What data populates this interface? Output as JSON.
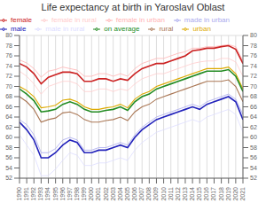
{
  "chart_data": {
    "type": "line",
    "title": "Life expectancy at birth in Yaroslavl Oblast",
    "x": [
      1990,
      1991,
      1992,
      1993,
      1994,
      1995,
      1996,
      1997,
      1998,
      1999,
      2000,
      2001,
      2002,
      2003,
      2004,
      2005,
      2006,
      2007,
      2008,
      2009,
      2010,
      2011,
      2012,
      2013,
      2014,
      2015,
      2016,
      2017,
      2018,
      2019,
      2020,
      2021
    ],
    "series": [
      {
        "name": "female in urban",
        "color": "#ffb3b3",
        "values": [
          75.2,
          74.6,
          73.5,
          71.8,
          73.0,
          73.3,
          73.8,
          73.5,
          73.2,
          72.0,
          72.0,
          72.5,
          72.5,
          72.0,
          72.5,
          72.0,
          73.5,
          74.5,
          75.0,
          75.5,
          75.5,
          76.0,
          76.5,
          76.8,
          77.5,
          77.5,
          77.8,
          77.8,
          78.0,
          78.2,
          77.8,
          75.0
        ]
      },
      {
        "name": "female",
        "color": "#cc2222",
        "values": [
          74.5,
          73.8,
          72.5,
          70.5,
          71.8,
          72.3,
          72.8,
          72.8,
          72.5,
          71.0,
          71.0,
          71.5,
          71.5,
          71.0,
          71.5,
          71.2,
          72.5,
          73.5,
          74.0,
          74.5,
          74.5,
          75.0,
          75.5,
          76.0,
          77.0,
          77.2,
          77.5,
          77.5,
          77.8,
          78.0,
          77.3,
          74.5
        ]
      },
      {
        "name": "female in rural",
        "color": "#ffcccc",
        "values": [
          73.0,
          72.0,
          70.5,
          68.5,
          70.0,
          70.5,
          71.0,
          71.0,
          70.5,
          69.0,
          69.0,
          69.5,
          69.5,
          69.0,
          69.5,
          69.2,
          70.5,
          71.5,
          72.0,
          72.5,
          72.5,
          73.0,
          73.5,
          74.0,
          74.5,
          74.8,
          75.0,
          75.0,
          75.5,
          75.5,
          74.8,
          72.0
        ]
      },
      {
        "name": "urban",
        "color": "#ddaa00",
        "values": [
          70.0,
          69.2,
          68.0,
          65.8,
          66.0,
          66.3,
          67.3,
          67.5,
          67.0,
          66.0,
          65.5,
          65.5,
          65.8,
          66.0,
          66.5,
          65.8,
          67.5,
          68.5,
          69.0,
          70.0,
          70.5,
          71.0,
          71.5,
          72.0,
          72.5,
          73.0,
          73.5,
          73.5,
          73.5,
          73.8,
          72.5,
          69.5
        ]
      },
      {
        "name": "on average",
        "color": "#228B22",
        "values": [
          69.5,
          68.5,
          67.2,
          65.0,
          65.2,
          65.5,
          66.5,
          67.0,
          66.5,
          65.5,
          65.0,
          65.0,
          65.3,
          65.5,
          66.0,
          65.3,
          67.0,
          68.0,
          68.5,
          69.5,
          70.0,
          70.5,
          71.0,
          71.5,
          72.0,
          72.5,
          73.0,
          73.0,
          73.0,
          73.3,
          72.0,
          69.0
        ]
      },
      {
        "name": "rural",
        "color": "#aa7755",
        "values": [
          68.0,
          67.0,
          65.5,
          63.0,
          63.5,
          63.8,
          64.8,
          65.0,
          64.5,
          63.5,
          63.0,
          63.0,
          63.3,
          63.5,
          64.0,
          63.3,
          65.0,
          66.0,
          66.5,
          67.5,
          68.0,
          68.5,
          69.0,
          69.5,
          70.0,
          70.5,
          71.0,
          71.0,
          71.0,
          71.3,
          70.0,
          67.0
        ]
      },
      {
        "name": "made in urban",
        "color": "#aaaaee",
        "values": [
          63.5,
          62.5,
          60.5,
          57.0,
          57.0,
          57.8,
          59.5,
          60.0,
          59.5,
          57.5,
          57.5,
          58.0,
          58.0,
          58.5,
          59.0,
          58.5,
          60.5,
          62.0,
          63.0,
          64.0,
          64.5,
          65.0,
          65.5,
          66.0,
          66.5,
          66.0,
          67.0,
          67.5,
          68.0,
          68.5,
          67.5,
          64.5
        ]
      },
      {
        "name": "male",
        "color": "#2222bb",
        "values": [
          63.0,
          61.5,
          59.5,
          56.0,
          56.0,
          57.0,
          58.5,
          59.5,
          59.0,
          57.0,
          57.0,
          57.5,
          57.5,
          58.0,
          58.5,
          58.0,
          60.0,
          61.5,
          62.5,
          63.5,
          64.0,
          64.5,
          65.0,
          65.5,
          66.0,
          65.5,
          66.5,
          67.0,
          67.5,
          68.0,
          67.0,
          63.5
        ]
      },
      {
        "name": "male in rural",
        "color": "#ddddff",
        "values": [
          60.5,
          58.5,
          56.5,
          52.5,
          52.5,
          53.8,
          55.5,
          57.0,
          56.5,
          54.5,
          54.5,
          55.0,
          55.0,
          55.5,
          56.0,
          55.5,
          57.5,
          59.0,
          60.0,
          61.0,
          61.5,
          62.0,
          62.5,
          63.0,
          63.5,
          63.0,
          64.0,
          64.5,
          65.0,
          65.5,
          64.5,
          61.0
        ]
      }
    ],
    "xlim": [
      1990,
      2021
    ],
    "xticks": [
      1990,
      1991,
      1992,
      1993,
      1994,
      1995,
      1996,
      1997,
      1998,
      1999,
      2000,
      2001,
      2002,
      2003,
      2004,
      2005,
      2006,
      2007,
      2008,
      2009,
      2010,
      2011,
      2012,
      2013,
      2014,
      2015,
      2016,
      2017,
      2018,
      2019,
      2020,
      2021
    ],
    "ylim": [
      52,
      80
    ],
    "yticks": [
      52,
      54,
      56,
      58,
      60,
      62,
      64,
      66,
      68,
      70,
      72,
      74,
      76,
      78,
      80
    ],
    "y2lim": [
      52,
      80
    ],
    "y2ticks": [
      52,
      54,
      56,
      58,
      60,
      62,
      64,
      66,
      68,
      70,
      72,
      74,
      76,
      78,
      80
    ],
    "grid": true,
    "legend": "upper left"
  }
}
